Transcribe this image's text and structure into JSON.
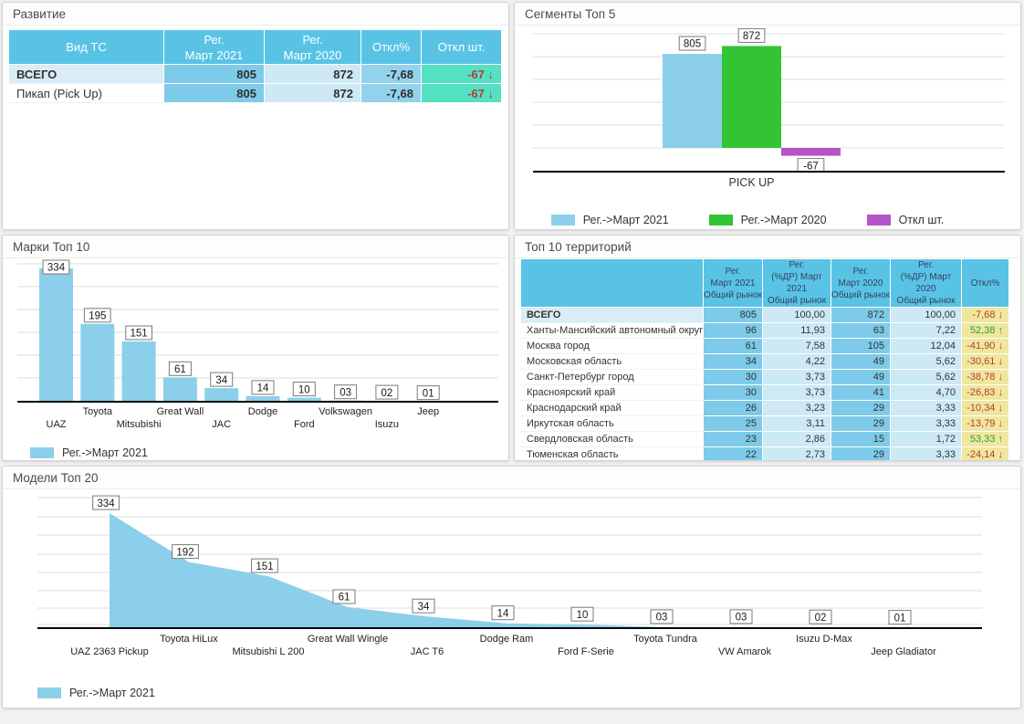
{
  "colors": {
    "header_blue": "#59c3e6",
    "cell_blue": "#7ecae9",
    "cell_light": "#cde9f6",
    "cell_mid": "#93d2ec",
    "cell_teal": "#54e1c3",
    "cell_yellow": "#f0e79e",
    "negative_red": "#b63c33",
    "positive_green": "#1f9e44",
    "bar_blue": "#8ccfea",
    "bar_green": "#33c433",
    "bar_purple": "#b554c8"
  },
  "panels": {
    "development": {
      "title": "Развитие",
      "table": {
        "columns": [
          "Вид ТС",
          "Рег.\nМарт 2021",
          "Рег.\nМарт 2020",
          "Откл%",
          "Откл шт."
        ],
        "rows": [
          {
            "label": "ВСЕГО",
            "bold": true,
            "reg_2021": "805",
            "reg_2020": "872",
            "dev_pct": "-7,68",
            "dev_units": "-67",
            "trend": "down"
          },
          {
            "label": "Пикап (Pick Up)",
            "bold": false,
            "reg_2021": "805",
            "reg_2020": "872",
            "dev_pct": "-7,68",
            "dev_units": "-67",
            "trend": "down"
          }
        ]
      }
    },
    "segments": {
      "title": "Сегменты Топ 5"
    },
    "brands": {
      "title": "Марки Топ 10"
    },
    "territories": {
      "title": "Топ 10 территорий",
      "table": {
        "columns": [
          "",
          "Рег.\nМарт 2021\nОбщий рынок",
          "Рег.\n(%ДР) Март 2021\nОбщий рынок",
          "Рег.\nМарт 2020\nОбщий рынок",
          "Рег.\n(%ДР) Март 2020\nОбщий рынок",
          "Откл%"
        ],
        "rows": [
          {
            "label": "ВСЕГО",
            "bold": true,
            "reg_2021": "805",
            "share_2021": "100,00",
            "reg_2020": "872",
            "share_2020": "100,00",
            "dev_pct": "-7,68",
            "trend": "down"
          },
          {
            "label": "Ханты-Мансийский автономный округ",
            "bold": false,
            "reg_2021": "96",
            "share_2021": "11,93",
            "reg_2020": "63",
            "share_2020": "7,22",
            "dev_pct": "52,38",
            "trend": "up"
          },
          {
            "label": "Москва город",
            "bold": false,
            "reg_2021": "61",
            "share_2021": "7,58",
            "reg_2020": "105",
            "share_2020": "12,04",
            "dev_pct": "-41,90",
            "trend": "down"
          },
          {
            "label": "Московская область",
            "bold": false,
            "reg_2021": "34",
            "share_2021": "4,22",
            "reg_2020": "49",
            "share_2020": "5,62",
            "dev_pct": "-30,61",
            "trend": "down"
          },
          {
            "label": "Санкт-Петербург город",
            "bold": false,
            "reg_2021": "30",
            "share_2021": "3,73",
            "reg_2020": "49",
            "share_2020": "5,62",
            "dev_pct": "-38,78",
            "trend": "down"
          },
          {
            "label": "Красноярский край",
            "bold": false,
            "reg_2021": "30",
            "share_2021": "3,73",
            "reg_2020": "41",
            "share_2020": "4,70",
            "dev_pct": "-26,83",
            "trend": "down"
          },
          {
            "label": "Краснодарский край",
            "bold": false,
            "reg_2021": "26",
            "share_2021": "3,23",
            "reg_2020": "29",
            "share_2020": "3,33",
            "dev_pct": "-10,34",
            "trend": "down"
          },
          {
            "label": "Иркутская область",
            "bold": false,
            "reg_2021": "25",
            "share_2021": "3,11",
            "reg_2020": "29",
            "share_2020": "3,33",
            "dev_pct": "-13,79",
            "trend": "down"
          },
          {
            "label": "Свердловская область",
            "bold": false,
            "reg_2021": "23",
            "share_2021": "2,86",
            "reg_2020": "15",
            "share_2020": "1,72",
            "dev_pct": "53,33",
            "trend": "up"
          },
          {
            "label": "Тюменская область",
            "bold": false,
            "reg_2021": "22",
            "share_2021": "2,73",
            "reg_2020": "29",
            "share_2020": "3,33",
            "dev_pct": "-24,14",
            "trend": "down"
          }
        ]
      }
    },
    "models": {
      "title": "Модели Топ 20"
    }
  },
  "chart_data": [
    {
      "id": "segments",
      "type": "bar",
      "title": "Сегменты Топ 5",
      "categories": [
        "PICK UP"
      ],
      "series": [
        {
          "name": "Рег.->Март 2021",
          "values": [
            805
          ],
          "color": "#8ccfea"
        },
        {
          "name": "Рег.->Март 2020",
          "values": [
            872
          ],
          "color": "#33c433"
        },
        {
          "name": "Откл шт.",
          "values": [
            -67
          ],
          "color": "#b554c8"
        }
      ],
      "data_labels": [
        "805",
        "872",
        "-67"
      ],
      "ylim": [
        -200,
        900
      ],
      "grid": true,
      "legend_position": "bottom-center"
    },
    {
      "id": "brands",
      "type": "bar",
      "title": "Марки Топ 10",
      "categories": [
        "UAZ",
        "Toyota",
        "Mitsubishi",
        "Great Wall",
        "JAC",
        "Dodge",
        "Ford",
        "Volkswagen",
        "Isuzu",
        "Jeep"
      ],
      "series": [
        {
          "name": "Рег.->Март 2021",
          "values": [
            334,
            195,
            151,
            61,
            34,
            14,
            10,
            3,
            2,
            1
          ],
          "color": "#8ccfea"
        }
      ],
      "data_labels": [
        "334",
        "195",
        "151",
        "61",
        "34",
        "14",
        "10",
        "03",
        "02",
        "01"
      ],
      "ylim": [
        0,
        360
      ],
      "grid": true,
      "legend_position": "bottom-left"
    },
    {
      "id": "models",
      "type": "area",
      "title": "Модели Топ 20",
      "categories": [
        "UAZ 2363 Pickup",
        "Toyota HiLux",
        "Mitsubishi L 200",
        "Great Wall Wingle",
        "JAC T6",
        "Dodge Ram",
        "Ford F-Serie",
        "Toyota Tundra",
        "VW Amarok",
        "Isuzu D-Max",
        "Jeep Gladiator"
      ],
      "series": [
        {
          "name": "Рег.->Март 2021",
          "values": [
            334,
            192,
            151,
            61,
            34,
            14,
            10,
            3,
            3,
            2,
            1
          ],
          "color": "#8ccfea"
        }
      ],
      "data_labels": [
        "334",
        "192",
        "151",
        "61",
        "34",
        "14",
        "10",
        "03",
        "03",
        "02",
        "01"
      ],
      "ylim": [
        0,
        400
      ],
      "grid": true,
      "legend_position": "bottom-left"
    }
  ]
}
